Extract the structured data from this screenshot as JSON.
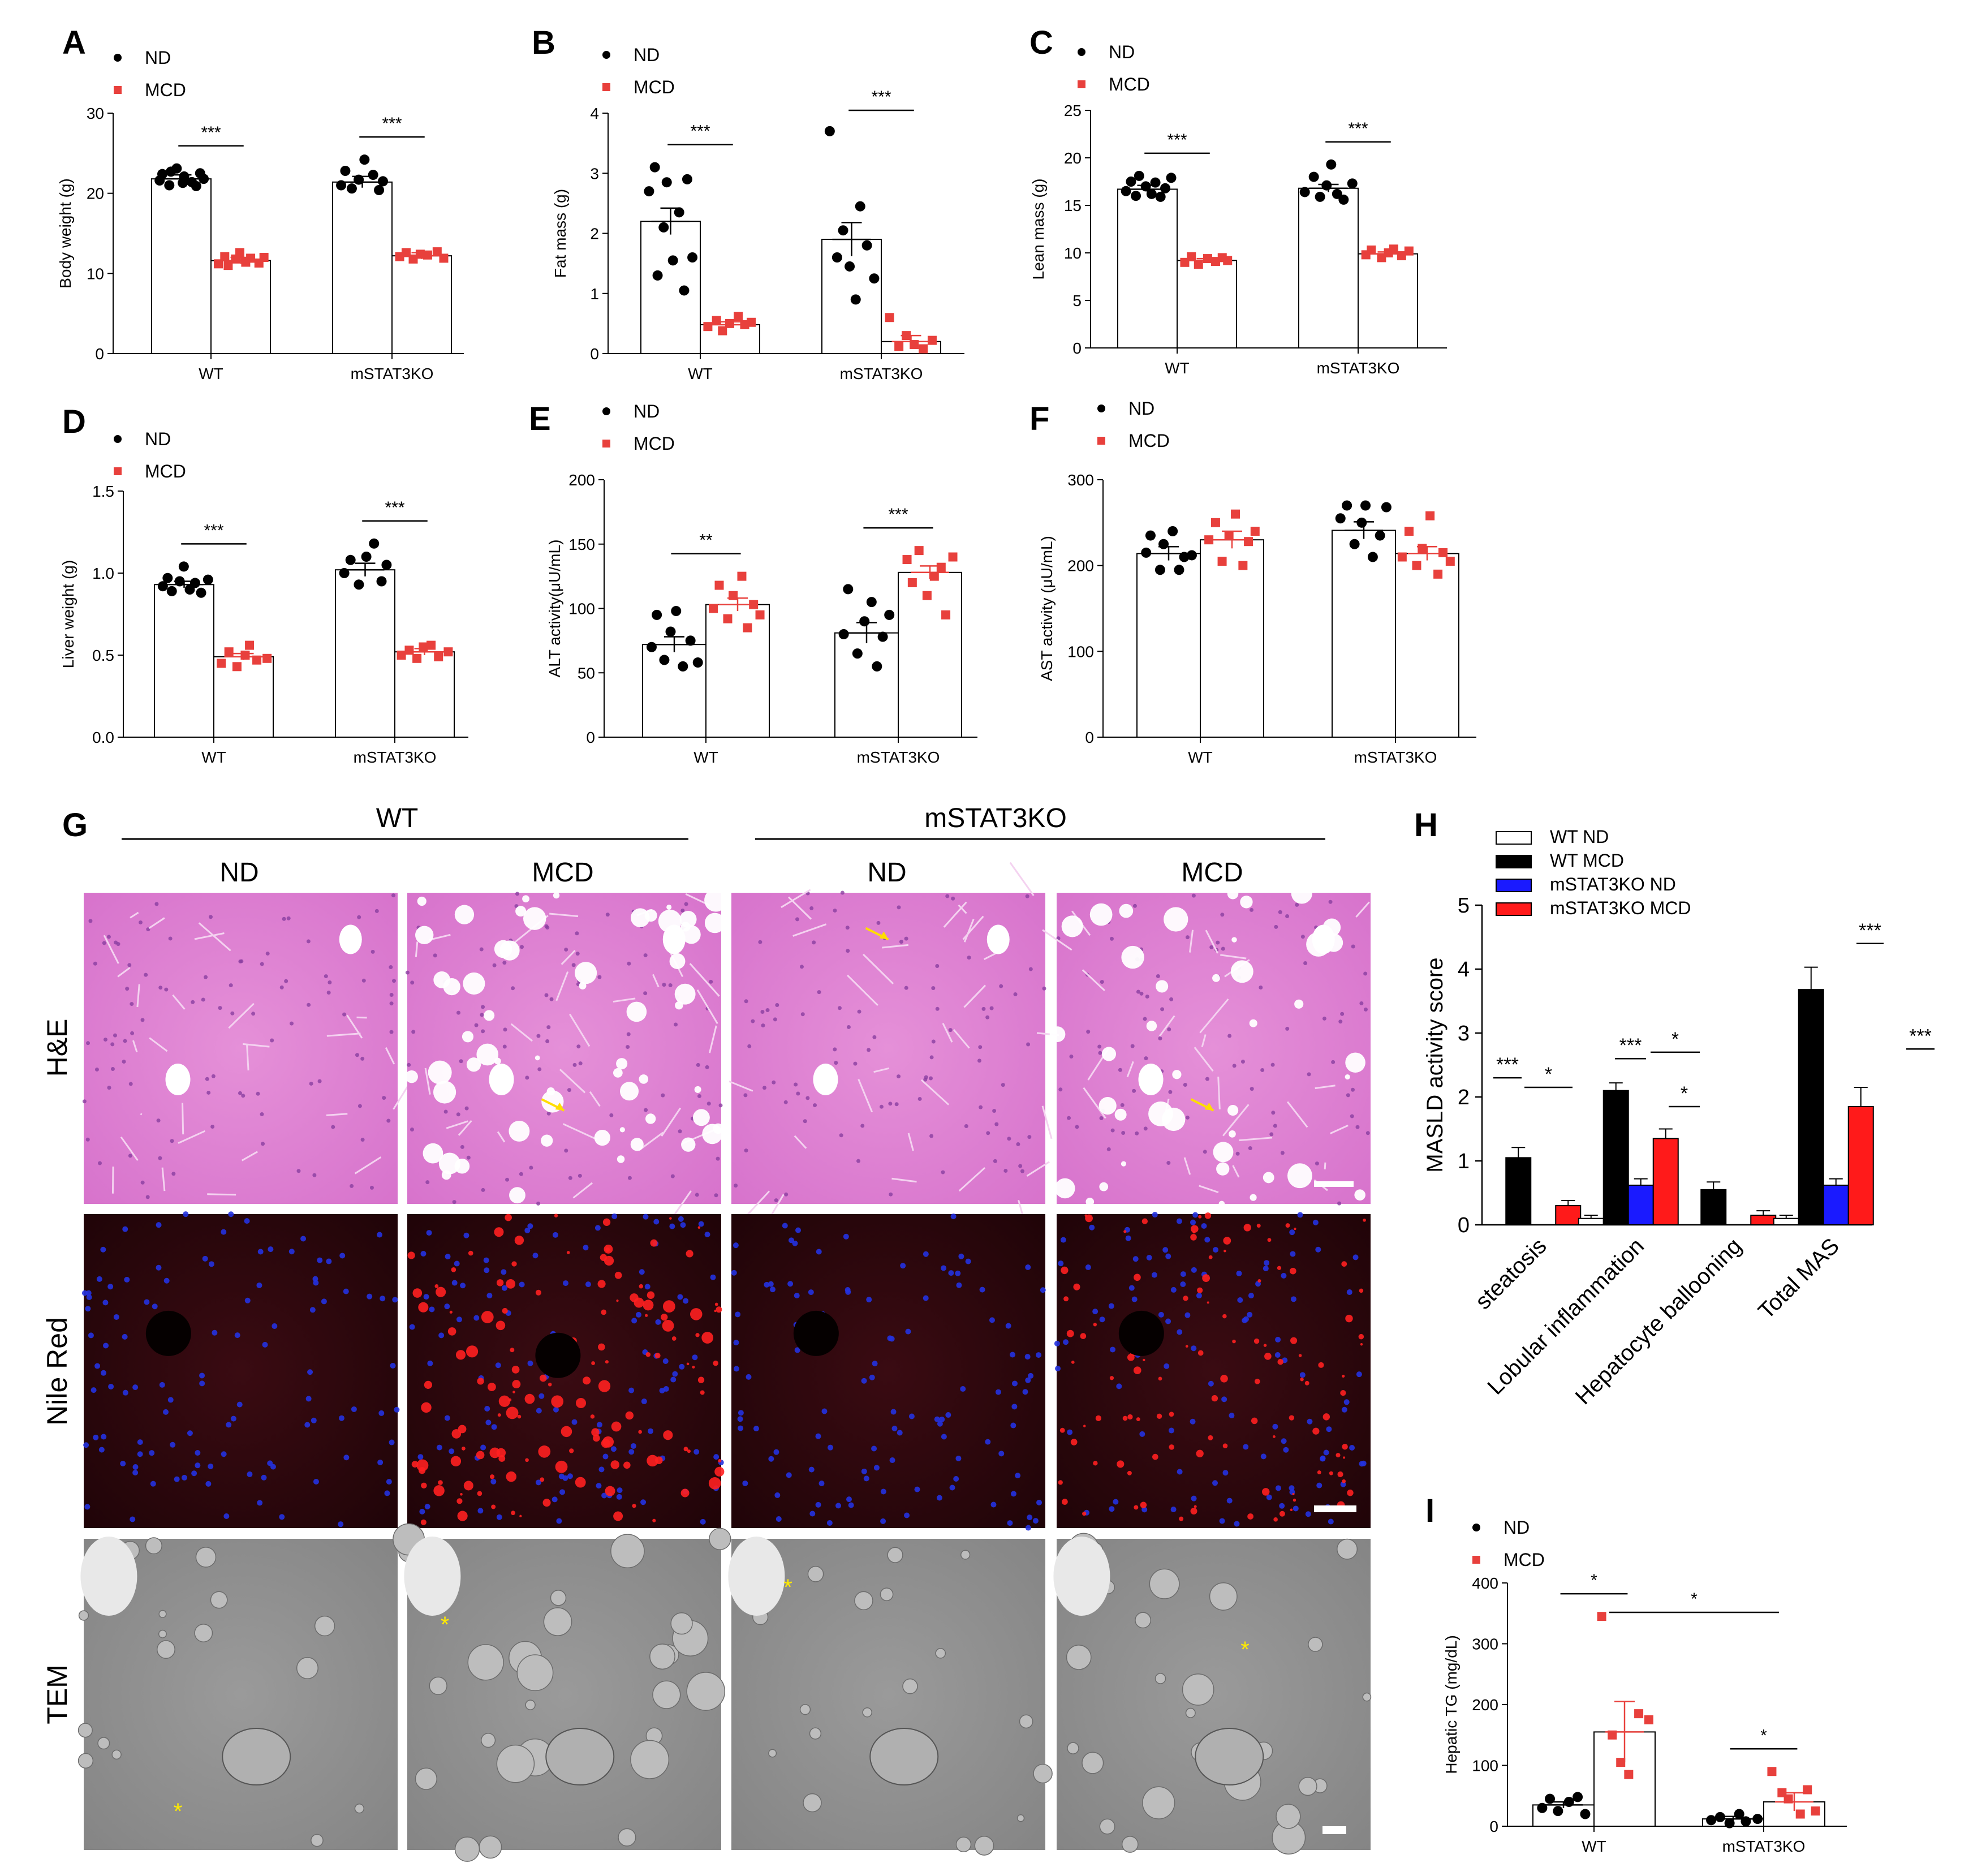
{
  "colors": {
    "nd": "#000000",
    "mcd": "#e8403c",
    "mstat_nd": "#1a1aff",
    "mstat_mcd": "#ff1a1a",
    "arrow": "#ffdd00"
  },
  "legend": {
    "nd": "ND",
    "mcd": "MCD"
  },
  "panels": [
    {
      "letter": "A",
      "ylabel": "Body weight (g)",
      "ylim": [
        0,
        30
      ],
      "ticks": [
        0,
        10,
        20,
        30
      ],
      "groups": [
        "WT",
        "mSTAT3KO"
      ],
      "means": [
        [
          21.8,
          11.6
        ],
        [
          21.4,
          12.2
        ]
      ],
      "sem": [
        [
          0.5,
          0.4
        ],
        [
          0.7,
          0.4
        ]
      ],
      "pts": [
        [
          [
            21.6,
            22.4,
            21.0,
            22.7,
            23.1,
            21.3,
            22.1,
            21.4,
            20.9,
            22.5,
            21.8
          ],
          [
            11.2,
            12.1,
            11.0,
            11.8,
            12.6,
            11.4,
            11.9,
            11.3,
            12.0
          ]
        ],
        [
          [
            21.0,
            22.8,
            20.6,
            21.7,
            24.2,
            22.3,
            20.4,
            21.5
          ],
          [
            12.1,
            12.6,
            11.8,
            12.4,
            12.3,
            12.7,
            11.9
          ]
        ]
      ],
      "sig": [
        "***",
        "***"
      ]
    },
    {
      "letter": "B",
      "ylabel": "Fat mass (g)",
      "ylim": [
        0,
        4
      ],
      "ticks": [
        0,
        1,
        2,
        3,
        4
      ],
      "groups": [
        "WT",
        "mSTAT3KO"
      ],
      "means": [
        [
          2.2,
          0.48
        ],
        [
          1.9,
          0.2
        ]
      ],
      "sem": [
        [
          0.22,
          0.05
        ],
        [
          0.28,
          0.1
        ]
      ],
      "pts": [
        [
          [
            2.7,
            3.1,
            1.3,
            2.1,
            2.85,
            1.55,
            2.35,
            1.05,
            2.9,
            1.6
          ],
          [
            0.45,
            0.55,
            0.38,
            0.5,
            0.62,
            0.48,
            0.52
          ]
        ],
        [
          [
            3.7,
            1.6,
            2.05,
            1.45,
            0.9,
            2.45,
            1.8,
            1.25
          ],
          [
            0.6,
            0.12,
            0.3,
            0.15,
            0.08,
            0.22
          ]
        ]
      ],
      "sig": [
        "***",
        "***"
      ]
    },
    {
      "letter": "C",
      "ylabel": "Lean mass (g)",
      "ylim": [
        0,
        25
      ],
      "ticks": [
        0,
        5,
        10,
        15,
        20,
        25
      ],
      "groups": [
        "WT",
        "mSTAT3KO"
      ],
      "means": [
        [
          16.7,
          9.2
        ],
        [
          16.8,
          9.9
        ]
      ],
      "sem": [
        [
          0.4,
          0.2
        ],
        [
          0.4,
          0.2
        ]
      ],
      "pts": [
        [
          [
            16.5,
            17.5,
            16.0,
            18.1,
            17.0,
            16.2,
            17.4,
            15.9,
            16.8,
            17.9
          ],
          [
            9.0,
            9.6,
            8.8,
            9.4,
            9.1,
            9.5,
            9.2
          ]
        ],
        [
          [
            16.4,
            18.0,
            15.9,
            17.1,
            19.3,
            16.2,
            15.6,
            17.3
          ],
          [
            9.8,
            10.3,
            9.5,
            10.0,
            10.4,
            9.7,
            10.2
          ]
        ]
      ],
      "sig": [
        "***",
        "***"
      ]
    },
    {
      "letter": "D",
      "ylabel": "Liver weight (g)",
      "ylim": [
        0,
        1.5
      ],
      "ticks": [
        "0.0",
        "0.5",
        "1.0",
        "1.5"
      ],
      "tickvals": [
        0,
        0.5,
        1,
        1.5
      ],
      "groups": [
        "WT",
        "mSTAT3KO"
      ],
      "means": [
        [
          0.93,
          0.49
        ],
        [
          1.02,
          0.52
        ]
      ],
      "sem": [
        [
          0.02,
          0.02
        ],
        [
          0.04,
          0.02
        ]
      ],
      "pts": [
        [
          [
            0.92,
            0.97,
            0.89,
            0.95,
            1.04,
            0.9,
            0.94,
            0.88,
            0.96
          ],
          [
            0.45,
            0.52,
            0.43,
            0.5,
            0.56,
            0.47,
            0.48
          ]
        ],
        [
          [
            1.0,
            1.08,
            0.93,
            1.1,
            1.18,
            0.95,
            1.05
          ],
          [
            0.5,
            0.53,
            0.48,
            0.55,
            0.56,
            0.49,
            0.52
          ]
        ]
      ],
      "sig": [
        "***",
        "***"
      ]
    },
    {
      "letter": "E",
      "ylabel": "ALT activity(μU/mL)",
      "ylim": [
        0,
        200
      ],
      "ticks": [
        0,
        50,
        100,
        150,
        200
      ],
      "groups": [
        "WT",
        "mSTAT3KO"
      ],
      "means": [
        [
          72,
          103
        ],
        [
          81,
          128
        ]
      ],
      "sem": [
        [
          6,
          5
        ],
        [
          8,
          5
        ]
      ],
      "pts": [
        [
          [
            70,
            95,
            60,
            82,
            98,
            55,
            75,
            58
          ],
          [
            100,
            118,
            92,
            110,
            125,
            85,
            103,
            95
          ]
        ],
        [
          [
            80,
            115,
            65,
            90,
            105,
            55,
            78,
            95
          ],
          [
            138,
            120,
            145,
            110,
            125,
            132,
            95,
            140
          ]
        ]
      ],
      "sig": [
        "**",
        "***"
      ]
    },
    {
      "letter": "F",
      "ylabel": "AST activity (μU/mL)",
      "ylim": [
        0,
        300
      ],
      "ticks": [
        0,
        100,
        200,
        300
      ],
      "groups": [
        "WT",
        "mSTAT3KO"
      ],
      "means": [
        [
          214,
          230
        ],
        [
          241,
          214
        ]
      ],
      "sem": [
        [
          8,
          10
        ],
        [
          10,
          8
        ]
      ],
      "pts": [
        [
          [
            215,
            235,
            195,
            225,
            240,
            195,
            210,
            212
          ],
          [
            230,
            250,
            205,
            235,
            260,
            200,
            228,
            240
          ]
        ],
        [
          [
            255,
            270,
            225,
            250,
            270,
            210,
            235,
            268
          ],
          [
            210,
            240,
            200,
            220,
            258,
            190,
            215,
            205
          ]
        ]
      ],
      "sig": [
        "",
        ""
      ]
    }
  ],
  "histology": {
    "title_left": "WT",
    "title_right": "mSTAT3KO",
    "cols": [
      "ND",
      "MCD",
      "ND",
      "MCD"
    ],
    "rows": [
      "H&E",
      "Nile Red",
      "TEM"
    ],
    "letter": "G"
  },
  "panel_h": {
    "letter": "H",
    "ylabel": "MASLD activity score",
    "ylim": [
      0,
      5
    ],
    "ticks": [
      0,
      1,
      2,
      3,
      4,
      5
    ],
    "categories": [
      "steatosis",
      "Lobular inflammation",
      "Hepatocyte ballooning",
      "Total MAS"
    ],
    "series": [
      {
        "name": "WT ND",
        "values": [
          0,
          0.1,
          0,
          0.1
        ],
        "sem": [
          0,
          0.05,
          0,
          0.05
        ]
      },
      {
        "name": "WT MCD",
        "values": [
          1.05,
          2.1,
          0.55,
          3.68
        ],
        "sem": [
          0.16,
          0.12,
          0.12,
          0.35
        ]
      },
      {
        "name": "mSTAT3KO ND",
        "values": [
          0,
          0.62,
          0,
          0.62
        ],
        "sem": [
          0,
          0.1,
          0,
          0.1
        ]
      },
      {
        "name": "mSTAT3KO MCD",
        "values": [
          0.3,
          1.35,
          0.15,
          1.85
        ],
        "sem": [
          0.08,
          0.15,
          0.07,
          0.3
        ]
      }
    ],
    "sig": [
      "***",
      "*",
      "***",
      "*",
      "*",
      "***",
      "***"
    ]
  },
  "panel_i": {
    "letter": "I",
    "ylabel": "Hepatic TG (mg/dL)",
    "ylim": [
      0,
      400
    ],
    "ticks": [
      0,
      100,
      200,
      300,
      400
    ],
    "groups": [
      "WT",
      "mSTAT3KO"
    ],
    "means": [
      [
        35,
        155
      ],
      [
        12,
        40
      ]
    ],
    "sem": [
      [
        5,
        50
      ],
      [
        4,
        15
      ]
    ],
    "pts": [
      [
        [
          30,
          45,
          25,
          40,
          48,
          20
        ],
        [
          345,
          150,
          105,
          85,
          185,
          175
        ]
      ],
      [
        [
          10,
          15,
          5,
          20,
          8,
          12
        ],
        [
          90,
          55,
          45,
          20,
          60,
          25
        ]
      ]
    ],
    "sig": [
      "*",
      "*"
    ]
  }
}
